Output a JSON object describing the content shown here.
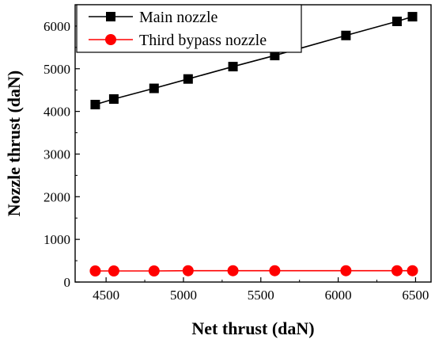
{
  "chart_data": {
    "type": "line",
    "xlabel": "Net thrust (daN)",
    "ylabel": "Nozzle thrust (daN)",
    "xlim": [
      4300,
      6600
    ],
    "ylim": [
      0,
      6500
    ],
    "x_ticks": [
      4500,
      5000,
      5500,
      6000,
      6500
    ],
    "y_ticks": [
      0,
      1000,
      2000,
      3000,
      4000,
      5000,
      6000
    ],
    "legend_position": "top-left",
    "series": [
      {
        "name": "Main nozzle",
        "color": "#000000",
        "marker": "square",
        "x": [
          4430,
          4550,
          4810,
          5030,
          5320,
          5590,
          6050,
          6380,
          6480
        ],
        "y": [
          4160,
          4290,
          4540,
          4760,
          5050,
          5310,
          5780,
          6110,
          6220
        ]
      },
      {
        "name": "Third bypass nozzle",
        "color": "#ff0000",
        "marker": "circle",
        "x": [
          4430,
          4550,
          4810,
          5030,
          5320,
          5590,
          6050,
          6380,
          6480
        ],
        "y": [
          260,
          260,
          260,
          265,
          265,
          265,
          265,
          265,
          265
        ]
      }
    ]
  }
}
